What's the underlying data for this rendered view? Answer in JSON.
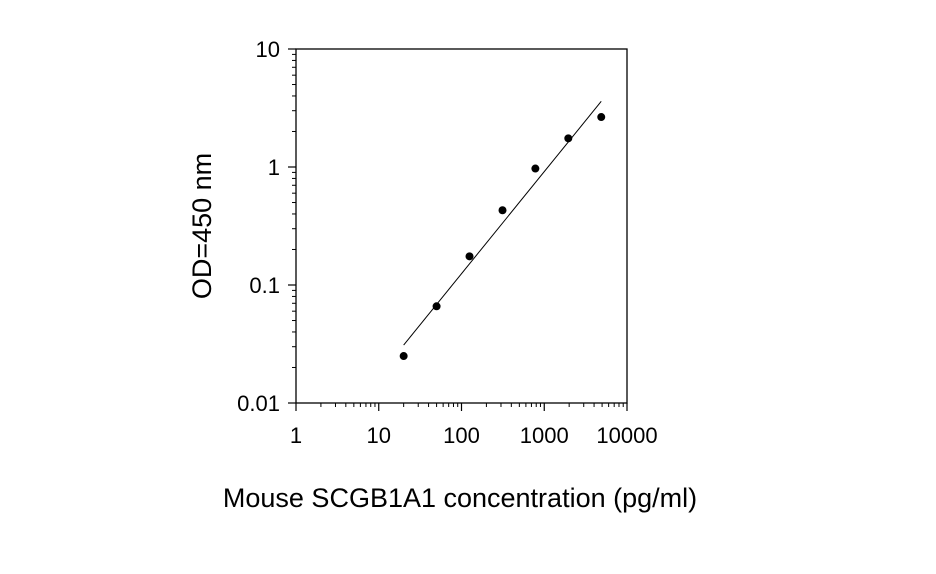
{
  "chart_data": {
    "type": "scatter",
    "title": "",
    "xlabel": "Mouse SCGB1A1 concentration (pg/ml)",
    "ylabel": "OD=450 nm",
    "xscale": "log",
    "yscale": "log",
    "xlim": [
      1,
      10000
    ],
    "ylim": [
      0.01,
      10
    ],
    "xticks": [
      1,
      10,
      100,
      1000,
      10000
    ],
    "xtick_labels": [
      "1",
      "10",
      "100",
      "1000",
      "10000"
    ],
    "yticks": [
      0.01,
      0.1,
      1,
      10
    ],
    "ytick_labels": [
      "0.01",
      "0.1",
      "1",
      "10"
    ],
    "grid": false,
    "legend": "none",
    "series": [
      {
        "x": [
          20,
          50,
          125,
          313,
          781,
          1953,
          4883
        ],
        "y": [
          0.025,
          0.066,
          0.175,
          0.43,
          0.97,
          1.75,
          2.65
        ]
      }
    ],
    "fit_line": {
      "x": [
        20,
        4883
      ],
      "y": [
        0.031,
        3.6
      ]
    },
    "colors": {
      "points": "#000000",
      "line": "#000000",
      "axis": "#000000"
    }
  }
}
